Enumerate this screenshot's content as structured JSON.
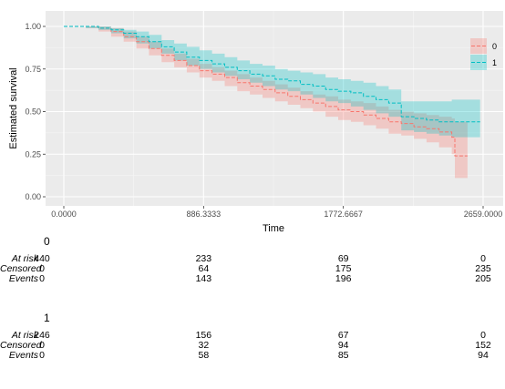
{
  "chart_data": {
    "type": "line",
    "title": "",
    "xlabel": "Time",
    "ylabel": "Estimated survival",
    "xlim": [
      0,
      2659
    ],
    "ylim": [
      0,
      1
    ],
    "x_tick_labels": [
      "0.0000",
      "886.3333",
      "1772.6667",
      "2659.0000"
    ],
    "x_tick_values": [
      0,
      886.3333,
      1772.6667,
      2659
    ],
    "y_tick_labels": [
      "0.00",
      "0.25",
      "0.50",
      "0.75",
      "1.00"
    ],
    "y_tick_values": [
      0,
      0.25,
      0.5,
      0.75,
      1
    ],
    "grid": true,
    "legend_position": "right",
    "series": [
      {
        "name": "0",
        "color": "#F8766D",
        "points": [
          [
            0,
            1
          ],
          [
            140,
            1
          ],
          [
            220,
            0.99
          ],
          [
            300,
            0.97
          ],
          [
            380,
            0.94
          ],
          [
            460,
            0.91
          ],
          [
            540,
            0.87
          ],
          [
            620,
            0.83
          ],
          [
            700,
            0.8
          ],
          [
            780,
            0.77
          ],
          [
            860,
            0.74
          ],
          [
            940,
            0.72
          ],
          [
            1020,
            0.7
          ],
          [
            1100,
            0.67
          ],
          [
            1180,
            0.65
          ],
          [
            1260,
            0.63
          ],
          [
            1340,
            0.61
          ],
          [
            1420,
            0.59
          ],
          [
            1500,
            0.57
          ],
          [
            1580,
            0.55
          ],
          [
            1660,
            0.53
          ],
          [
            1740,
            0.51
          ],
          [
            1820,
            0.5
          ],
          [
            1900,
            0.48
          ],
          [
            1980,
            0.46
          ],
          [
            2060,
            0.44
          ],
          [
            2140,
            0.43
          ],
          [
            2220,
            0.41
          ],
          [
            2300,
            0.4
          ],
          [
            2380,
            0.38
          ],
          [
            2460,
            0.35
          ],
          [
            2480,
            0.24
          ],
          [
            2560,
            0.24
          ]
        ],
        "lower": [
          [
            0,
            1
          ],
          [
            140,
            0.99
          ],
          [
            220,
            0.97
          ],
          [
            300,
            0.94
          ],
          [
            380,
            0.91
          ],
          [
            460,
            0.87
          ],
          [
            540,
            0.83
          ],
          [
            620,
            0.79
          ],
          [
            700,
            0.76
          ],
          [
            780,
            0.73
          ],
          [
            860,
            0.7
          ],
          [
            940,
            0.68
          ],
          [
            1020,
            0.65
          ],
          [
            1100,
            0.62
          ],
          [
            1180,
            0.6
          ],
          [
            1260,
            0.58
          ],
          [
            1340,
            0.56
          ],
          [
            1420,
            0.54
          ],
          [
            1500,
            0.52
          ],
          [
            1580,
            0.5
          ],
          [
            1660,
            0.47
          ],
          [
            1740,
            0.45
          ],
          [
            1820,
            0.44
          ],
          [
            1900,
            0.42
          ],
          [
            1980,
            0.4
          ],
          [
            2060,
            0.37
          ],
          [
            2140,
            0.36
          ],
          [
            2220,
            0.34
          ],
          [
            2300,
            0.32
          ],
          [
            2380,
            0.29
          ],
          [
            2460,
            0.25
          ],
          [
            2480,
            0.11
          ],
          [
            2560,
            0.11
          ]
        ],
        "upper": [
          [
            0,
            1
          ],
          [
            140,
            1
          ],
          [
            220,
            1
          ],
          [
            300,
            0.99
          ],
          [
            380,
            0.97
          ],
          [
            460,
            0.94
          ],
          [
            540,
            0.91
          ],
          [
            620,
            0.87
          ],
          [
            700,
            0.84
          ],
          [
            780,
            0.81
          ],
          [
            860,
            0.78
          ],
          [
            940,
            0.76
          ],
          [
            1020,
            0.74
          ],
          [
            1100,
            0.72
          ],
          [
            1180,
            0.7
          ],
          [
            1260,
            0.68
          ],
          [
            1340,
            0.66
          ],
          [
            1420,
            0.64
          ],
          [
            1500,
            0.62
          ],
          [
            1580,
            0.6
          ],
          [
            1660,
            0.59
          ],
          [
            1740,
            0.57
          ],
          [
            1820,
            0.56
          ],
          [
            1900,
            0.55
          ],
          [
            1980,
            0.53
          ],
          [
            2060,
            0.51
          ],
          [
            2140,
            0.5
          ],
          [
            2220,
            0.49
          ],
          [
            2300,
            0.48
          ],
          [
            2380,
            0.47
          ],
          [
            2460,
            0.46
          ],
          [
            2480,
            0.44
          ],
          [
            2560,
            0.44
          ]
        ]
      },
      {
        "name": "1",
        "color": "#00BFC4",
        "points": [
          [
            0,
            1
          ],
          [
            140,
            1
          ],
          [
            220,
            0.99
          ],
          [
            300,
            0.98
          ],
          [
            380,
            0.96
          ],
          [
            460,
            0.94
          ],
          [
            540,
            0.91
          ],
          [
            620,
            0.88
          ],
          [
            700,
            0.85
          ],
          [
            780,
            0.82
          ],
          [
            860,
            0.8
          ],
          [
            940,
            0.78
          ],
          [
            1020,
            0.76
          ],
          [
            1100,
            0.74
          ],
          [
            1180,
            0.72
          ],
          [
            1260,
            0.71
          ],
          [
            1340,
            0.69
          ],
          [
            1420,
            0.68
          ],
          [
            1500,
            0.66
          ],
          [
            1580,
            0.65
          ],
          [
            1660,
            0.63
          ],
          [
            1740,
            0.62
          ],
          [
            1820,
            0.61
          ],
          [
            1900,
            0.59
          ],
          [
            1980,
            0.57
          ],
          [
            2060,
            0.55
          ],
          [
            2140,
            0.47
          ],
          [
            2220,
            0.46
          ],
          [
            2300,
            0.45
          ],
          [
            2380,
            0.44
          ],
          [
            2460,
            0.44
          ],
          [
            2560,
            0.44
          ],
          [
            2640,
            0.44
          ]
        ],
        "lower": [
          [
            0,
            1
          ],
          [
            140,
            0.99
          ],
          [
            220,
            0.98
          ],
          [
            300,
            0.96
          ],
          [
            380,
            0.93
          ],
          [
            460,
            0.9
          ],
          [
            540,
            0.87
          ],
          [
            620,
            0.84
          ],
          [
            700,
            0.8
          ],
          [
            780,
            0.77
          ],
          [
            860,
            0.75
          ],
          [
            940,
            0.73
          ],
          [
            1020,
            0.71
          ],
          [
            1100,
            0.69
          ],
          [
            1180,
            0.67
          ],
          [
            1260,
            0.65
          ],
          [
            1340,
            0.63
          ],
          [
            1420,
            0.62
          ],
          [
            1500,
            0.6
          ],
          [
            1580,
            0.58
          ],
          [
            1660,
            0.56
          ],
          [
            1740,
            0.55
          ],
          [
            1820,
            0.53
          ],
          [
            1900,
            0.51
          ],
          [
            1980,
            0.49
          ],
          [
            2060,
            0.47
          ],
          [
            2140,
            0.39
          ],
          [
            2220,
            0.38
          ],
          [
            2300,
            0.37
          ],
          [
            2380,
            0.36
          ],
          [
            2460,
            0.35
          ],
          [
            2560,
            0.35
          ],
          [
            2640,
            0.35
          ]
        ],
        "upper": [
          [
            0,
            1
          ],
          [
            140,
            1
          ],
          [
            220,
            1
          ],
          [
            300,
            0.99
          ],
          [
            380,
            0.98
          ],
          [
            460,
            0.97
          ],
          [
            540,
            0.95
          ],
          [
            620,
            0.92
          ],
          [
            700,
            0.9
          ],
          [
            780,
            0.88
          ],
          [
            860,
            0.86
          ],
          [
            940,
            0.84
          ],
          [
            1020,
            0.82
          ],
          [
            1100,
            0.8
          ],
          [
            1180,
            0.78
          ],
          [
            1260,
            0.77
          ],
          [
            1340,
            0.75
          ],
          [
            1420,
            0.74
          ],
          [
            1500,
            0.73
          ],
          [
            1580,
            0.72
          ],
          [
            1660,
            0.7
          ],
          [
            1740,
            0.69
          ],
          [
            1820,
            0.68
          ],
          [
            1900,
            0.67
          ],
          [
            1980,
            0.65
          ],
          [
            2060,
            0.63
          ],
          [
            2140,
            0.56
          ],
          [
            2220,
            0.56
          ],
          [
            2300,
            0.56
          ],
          [
            2380,
            0.56
          ],
          [
            2460,
            0.57
          ],
          [
            2560,
            0.57
          ],
          [
            2640,
            0.57
          ]
        ]
      }
    ],
    "risk_tables": [
      {
        "title": "0",
        "rows": [
          {
            "label": "At risk",
            "values": [
              "440",
              "233",
              "69",
              "0"
            ]
          },
          {
            "label": "Censored",
            "values": [
              "0",
              "64",
              "175",
              "235"
            ]
          },
          {
            "label": "Events",
            "values": [
              "0",
              "143",
              "196",
              "205"
            ]
          }
        ]
      },
      {
        "title": "1",
        "rows": [
          {
            "label": "At risk",
            "values": [
              "246",
              "156",
              "67",
              "0"
            ]
          },
          {
            "label": "Censored",
            "values": [
              "0",
              "32",
              "94",
              "152"
            ]
          },
          {
            "label": "Events",
            "values": [
              "0",
              "58",
              "85",
              "94"
            ]
          }
        ]
      }
    ]
  }
}
